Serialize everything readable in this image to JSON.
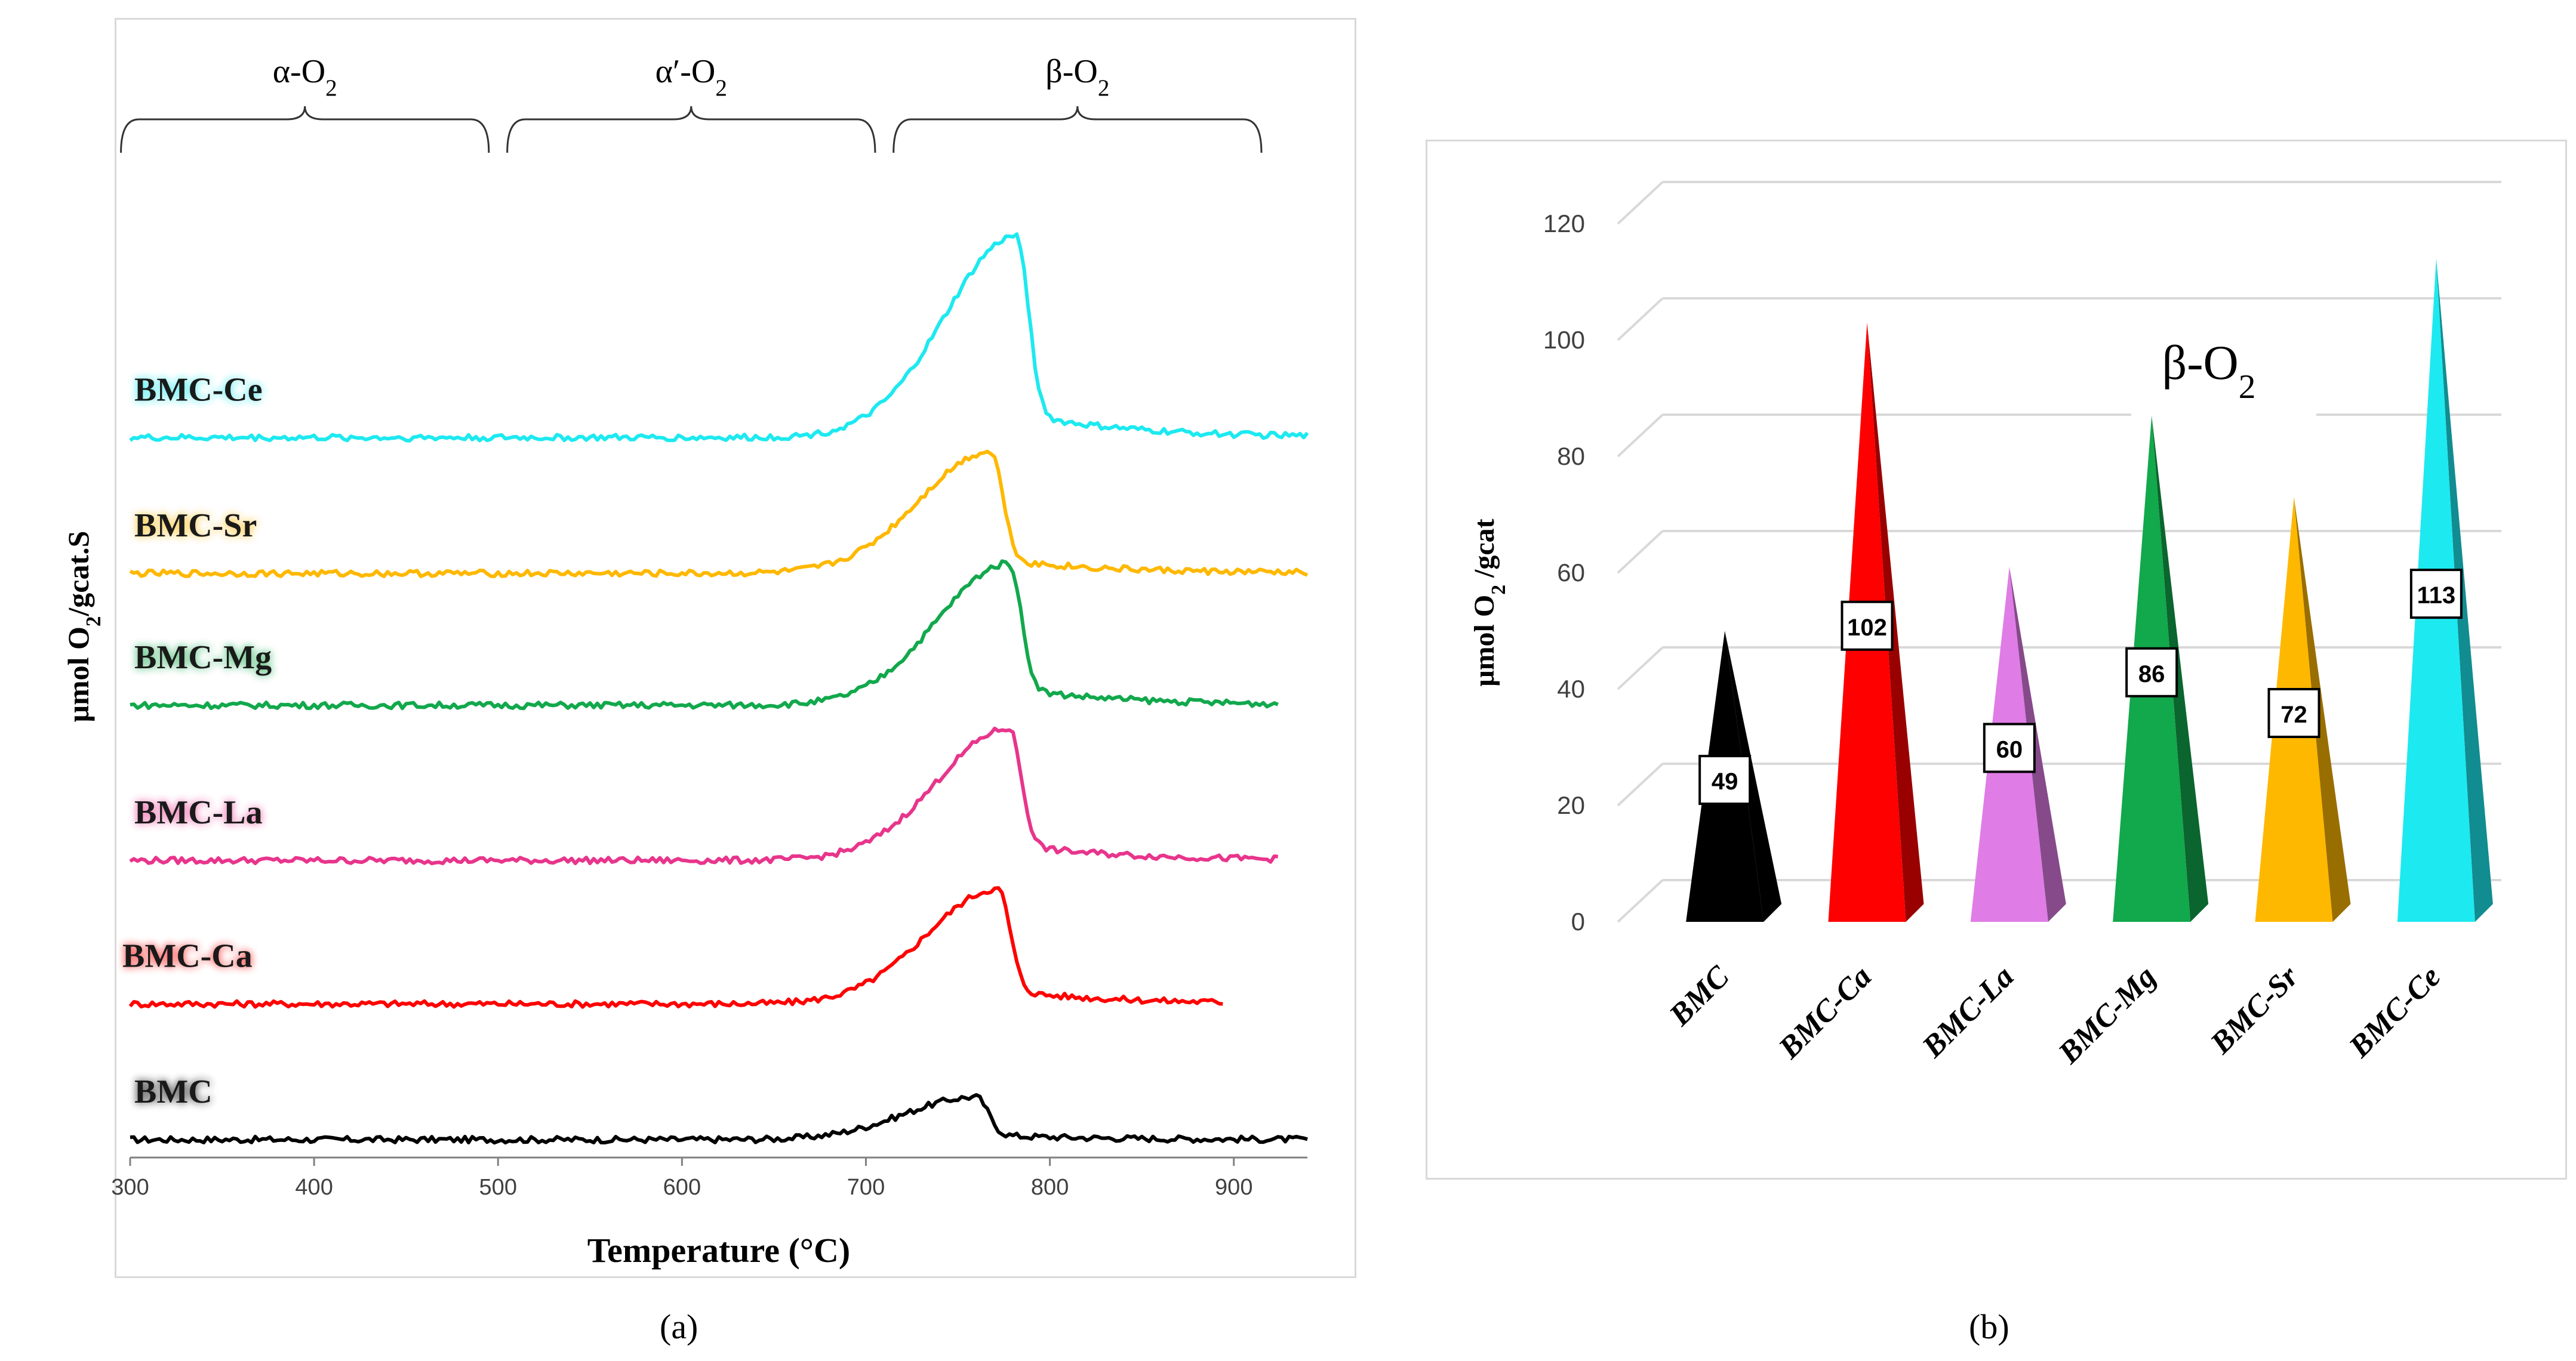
{
  "figure": {
    "caption_a": "(a)",
    "caption_b": "(b)"
  },
  "colors": {
    "BMC": "#000000",
    "BMC-Ca": "#ff0000",
    "BMC-La": "#e8358c",
    "BMC-Mg": "#12a84c",
    "BMC-Sr": "#ffb800",
    "BMC-Ce": "#1de9f0",
    "bar_BMC-La": "#df7ce6"
  },
  "chart_data": [
    {
      "type": "line",
      "title": "",
      "xlabel": "Temperature (°C)",
      "ylabel": "μmol O₂/gcat.S",
      "xlim": [
        300,
        940
      ],
      "xticks": [
        300,
        400,
        500,
        600,
        700,
        800,
        900
      ],
      "region_labels": [
        {
          "label": "α-O₂",
          "from": 295,
          "to": 495
        },
        {
          "label": "α′-O₂",
          "from": 505,
          "to": 705
        },
        {
          "label": "β-O₂",
          "from": 715,
          "to": 915
        }
      ],
      "series": [
        {
          "name": "BMC",
          "baseline": 0.0,
          "peak_x": 760,
          "peak_h": 0.55,
          "end_x": 940
        },
        {
          "name": "BMC-Ca",
          "baseline": 1.75,
          "peak_x": 772,
          "peak_h": 1.48,
          "end_x": 895
        },
        {
          "name": "BMC-La",
          "baseline": 3.6,
          "peak_x": 778,
          "peak_h": 1.7,
          "end_x": 925
        },
        {
          "name": "BMC-Mg",
          "baseline": 5.6,
          "peak_x": 778,
          "peak_h": 1.83,
          "end_x": 925
        },
        {
          "name": "BMC-Sr",
          "baseline": 7.3,
          "peak_x": 768,
          "peak_h": 1.57,
          "end_x": 940
        },
        {
          "name": "BMC-Ce",
          "baseline": 9.05,
          "peak_x": 782,
          "peak_h": 2.6,
          "end_x": 940
        }
      ]
    },
    {
      "type": "bar",
      "title": "β-O₂",
      "xlabel": "",
      "ylabel": "μmol O₂ /gcat",
      "ylim": [
        0,
        120
      ],
      "yticks": [
        0,
        20,
        40,
        60,
        80,
        100,
        120
      ],
      "categories": [
        "BMC",
        "BMC-Ca",
        "BMC-La",
        "BMC-Mg",
        "BMC-Sr",
        "BMC-Ce"
      ],
      "values": [
        49,
        102,
        60,
        86,
        72,
        113
      ]
    }
  ]
}
